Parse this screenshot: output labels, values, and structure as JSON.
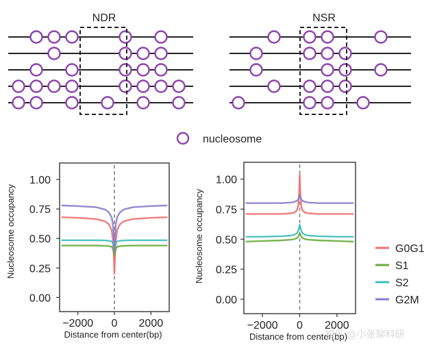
{
  "diagram": {
    "ndr_label": "NDR",
    "nsr_label": "NSR",
    "legend_label": "nucleosome",
    "colors": {
      "nucleosome": "#8e44ad",
      "line": "#222222"
    },
    "ndr_rows": [
      [
        1,
        2,
        3,
        6,
        8
      ],
      [
        2,
        6,
        7,
        8
      ],
      [
        1,
        3,
        6,
        7,
        8
      ],
      [
        0,
        1,
        2,
        3,
        6,
        7,
        8,
        9
      ],
      [
        0,
        1,
        3,
        5,
        7,
        9
      ]
    ],
    "nsr_rows": [
      [
        2,
        4,
        5,
        8
      ],
      [
        1,
        4,
        5,
        6
      ],
      [
        1,
        5,
        6,
        8
      ],
      [
        2,
        4,
        5,
        6
      ],
      [
        0,
        4,
        5,
        7
      ]
    ]
  },
  "chart_data": [
    {
      "type": "line",
      "title": "",
      "xlabel": "Distance from center(bp)",
      "ylabel": "Nucleosome occupancy",
      "xlim": [
        -3000,
        3000
      ],
      "ylim": [
        -0.12,
        1.14
      ],
      "xticks": [
        -2000,
        0,
        2000
      ],
      "xtick_labels": [
        "−2000",
        "0",
        "2000"
      ],
      "yticks": [
        0,
        0.25,
        0.5,
        0.75,
        1.0
      ],
      "ytick_labels": [
        "0.00",
        "0.25",
        "0.50",
        "0.75",
        "1.00"
      ],
      "x": [
        -2900,
        -2000,
        -1000,
        -500,
        -300,
        -150,
        -80,
        -30,
        0,
        30,
        80,
        150,
        300,
        500,
        1000,
        2000,
        2900
      ],
      "series": [
        {
          "name": "G0G1",
          "color": "#f07070",
          "values": [
            0.68,
            0.675,
            0.665,
            0.645,
            0.62,
            0.57,
            0.48,
            0.33,
            0.2,
            0.33,
            0.48,
            0.57,
            0.62,
            0.645,
            0.665,
            0.675,
            0.68
          ]
        },
        {
          "name": "S1",
          "color": "#6aab3c",
          "values": [
            0.44,
            0.44,
            0.44,
            0.438,
            0.435,
            0.43,
            0.41,
            0.38,
            0.35,
            0.38,
            0.41,
            0.43,
            0.435,
            0.438,
            0.44,
            0.44,
            0.44
          ]
        },
        {
          "name": "S2",
          "color": "#3dbdbd",
          "values": [
            0.485,
            0.485,
            0.485,
            0.483,
            0.48,
            0.475,
            0.46,
            0.43,
            0.4,
            0.43,
            0.46,
            0.475,
            0.48,
            0.483,
            0.485,
            0.485,
            0.485
          ]
        },
        {
          "name": "G2M",
          "color": "#8a7cc8",
          "values": [
            0.78,
            0.775,
            0.765,
            0.745,
            0.72,
            0.68,
            0.62,
            0.5,
            0.38,
            0.5,
            0.62,
            0.68,
            0.72,
            0.745,
            0.765,
            0.775,
            0.78
          ]
        }
      ]
    },
    {
      "type": "line",
      "title": "",
      "xlabel": "Distance from center(bp)",
      "ylabel": "Nucleosome occupancy",
      "xlim": [
        -3000,
        3000
      ],
      "ylim": [
        -0.12,
        1.14
      ],
      "xticks": [
        -2000,
        0,
        2000
      ],
      "xtick_labels": [
        "−2000",
        "0",
        "2000"
      ],
      "yticks": [
        0,
        0.25,
        0.5,
        0.75,
        1.0
      ],
      "ytick_labels": [
        "0.00",
        "0.25",
        "0.50",
        "0.75",
        "1.00"
      ],
      "x": [
        -2900,
        -2000,
        -1000,
        -500,
        -300,
        -150,
        -80,
        -30,
        0,
        30,
        80,
        150,
        300,
        500,
        1000,
        2000,
        2900
      ],
      "series": [
        {
          "name": "G0G1",
          "color": "#f07070",
          "values": [
            0.71,
            0.71,
            0.71,
            0.715,
            0.72,
            0.74,
            0.78,
            0.9,
            1.04,
            0.9,
            0.78,
            0.74,
            0.72,
            0.715,
            0.71,
            0.71,
            0.71
          ]
        },
        {
          "name": "S1",
          "color": "#6aab3c",
          "values": [
            0.48,
            0.485,
            0.49,
            0.495,
            0.5,
            0.51,
            0.52,
            0.54,
            0.55,
            0.54,
            0.52,
            0.51,
            0.5,
            0.495,
            0.49,
            0.485,
            0.48
          ]
        },
        {
          "name": "S2",
          "color": "#3dbdbd",
          "values": [
            0.52,
            0.52,
            0.525,
            0.53,
            0.535,
            0.55,
            0.57,
            0.6,
            0.62,
            0.6,
            0.57,
            0.55,
            0.535,
            0.53,
            0.525,
            0.52,
            0.52
          ]
        },
        {
          "name": "G2M",
          "color": "#8a7cc8",
          "values": [
            0.8,
            0.8,
            0.8,
            0.805,
            0.81,
            0.82,
            0.83,
            0.85,
            0.87,
            0.85,
            0.83,
            0.82,
            0.81,
            0.805,
            0.8,
            0.8,
            0.8
          ]
        }
      ]
    }
  ],
  "legend": {
    "items": [
      {
        "name": "G0G1",
        "color": "#f07070"
      },
      {
        "name": "S1",
        "color": "#6aab3c"
      },
      {
        "name": "S2",
        "color": "#3dbdbd"
      },
      {
        "name": "G2M",
        "color": "#8a7cc8"
      }
    ]
  },
  "watermark": {
    "text": "知乎 @小张聊科研"
  }
}
